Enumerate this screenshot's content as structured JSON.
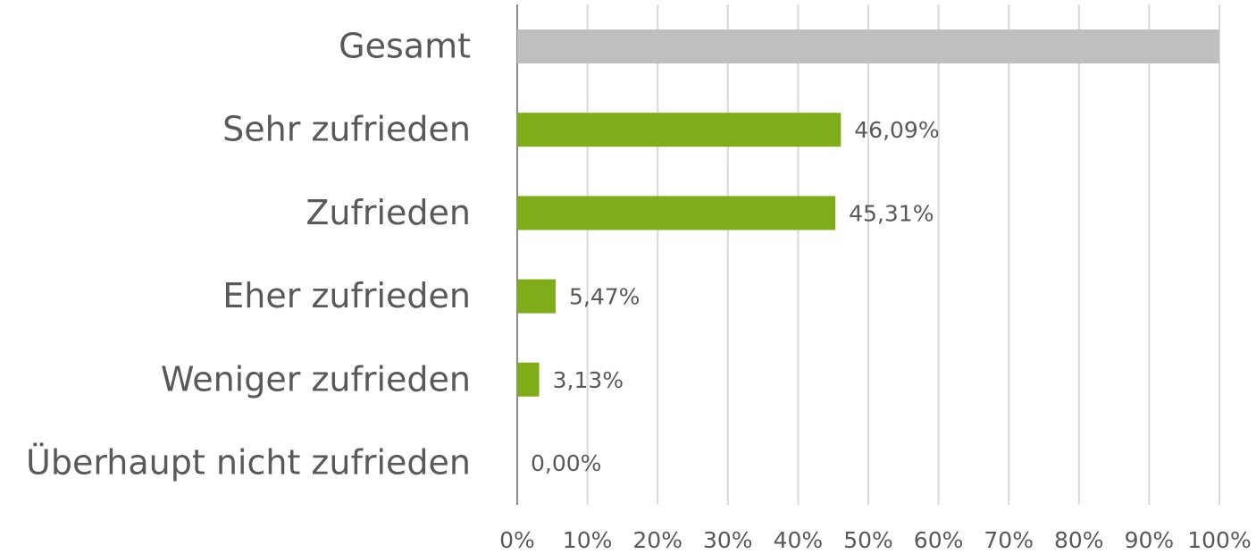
{
  "chart_data": {
    "type": "bar",
    "orientation": "horizontal",
    "categories": [
      "Gesamt",
      "Sehr zufrieden",
      "Zufrieden",
      "Eher zufrieden",
      "Weniger zufrieden",
      "Überhaupt nicht zufrieden"
    ],
    "values": [
      100,
      46.09,
      45.31,
      5.47,
      3.13,
      0
    ],
    "value_labels": [
      null,
      "46,09%",
      "45,31%",
      "5,47%",
      "3,13%",
      "0,00%"
    ],
    "colors": [
      "#bfbfbf",
      "#7fad1a",
      "#7fad1a",
      "#7fad1a",
      "#7fad1a",
      "#7fad1a"
    ],
    "xlim": [
      0,
      100
    ],
    "xticks": [
      {
        "value": 0,
        "label": "0%"
      },
      {
        "value": 10,
        "label": "10%"
      },
      {
        "value": 20,
        "label": "20%"
      },
      {
        "value": 30,
        "label": "30%"
      },
      {
        "value": 40,
        "label": "40%"
      },
      {
        "value": 50,
        "label": "50%"
      },
      {
        "value": 60,
        "label": "60%"
      },
      {
        "value": 70,
        "label": "70%"
      },
      {
        "value": 80,
        "label": "80%"
      },
      {
        "value": 90,
        "label": "90%"
      },
      {
        "value": 100,
        "label": "100%"
      }
    ],
    "grid": true
  }
}
